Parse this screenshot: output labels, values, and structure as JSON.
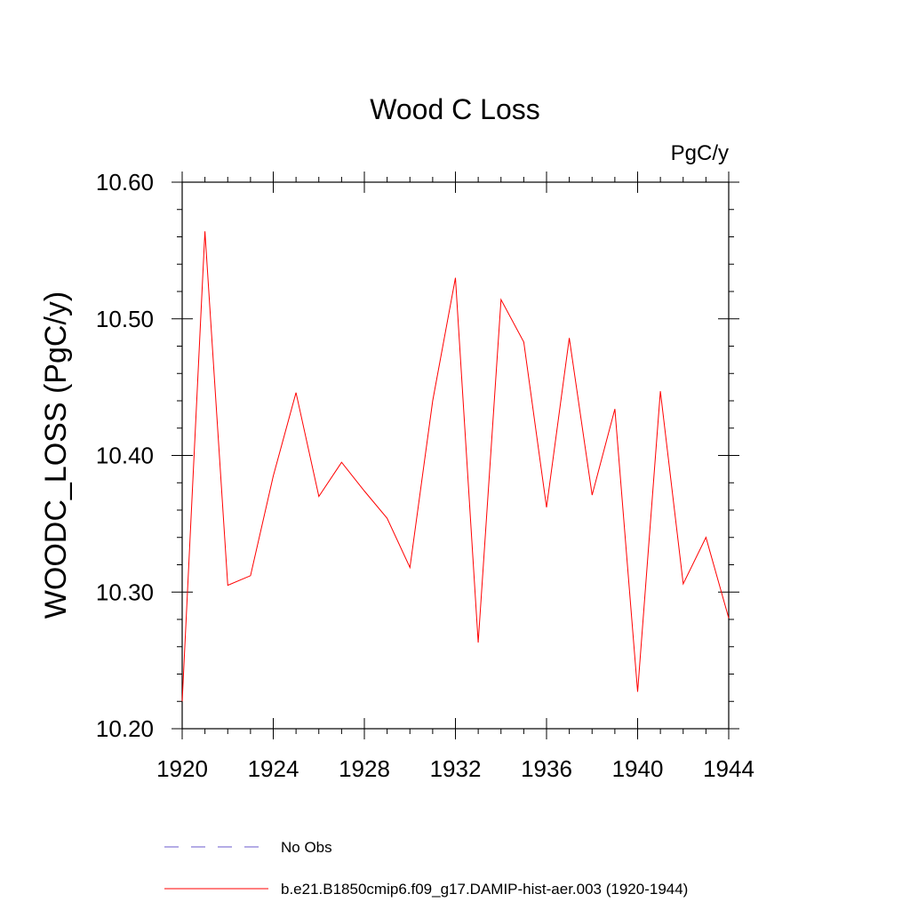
{
  "chart_data": {
    "type": "line",
    "title": "Wood C Loss",
    "units_label": "PgC/y",
    "xlabel": "",
    "ylabel": "WOODC_LOSS  (PgC/y)",
    "xlim": [
      1920,
      1944
    ],
    "ylim": [
      10.2,
      10.6
    ],
    "x_ticks": [
      1920,
      1924,
      1928,
      1932,
      1936,
      1940,
      1944
    ],
    "x_tick_labels": [
      "1920",
      "1924",
      "1928",
      "1932",
      "1936",
      "1940",
      "1944"
    ],
    "y_ticks": [
      10.2,
      10.3,
      10.4,
      10.5,
      10.6
    ],
    "y_tick_labels": [
      "10.20",
      "10.30",
      "10.40",
      "10.50",
      "10.60"
    ],
    "grid": false,
    "legend_position": "bottom",
    "series": [
      {
        "name": "b.e21.B1850cmip6.f09_g17.DAMIP-hist-aer.003 (1920-1944)",
        "color": "#ff0000",
        "style": "solid",
        "x": [
          1920,
          1921,
          1922,
          1923,
          1924,
          1925,
          1926,
          1927,
          1928,
          1929,
          1930,
          1931,
          1932,
          1933,
          1934,
          1935,
          1936,
          1937,
          1938,
          1939,
          1940,
          1941,
          1942,
          1943,
          1944
        ],
        "values": [
          10.22,
          10.564,
          10.305,
          10.312,
          10.385,
          10.446,
          10.37,
          10.395,
          10.374,
          10.354,
          10.318,
          10.44,
          10.53,
          10.263,
          10.514,
          10.483,
          10.362,
          10.486,
          10.371,
          10.434,
          10.227,
          10.447,
          10.306,
          10.34,
          10.281
        ]
      }
    ],
    "legend": [
      {
        "label": "No Obs",
        "color": "#6a5acd",
        "style": "dashed"
      },
      {
        "label": "b.e21.B1850cmip6.f09_g17.DAMIP-hist-aer.003 (1920-1944)",
        "color": "#ff0000",
        "style": "solid"
      }
    ]
  }
}
